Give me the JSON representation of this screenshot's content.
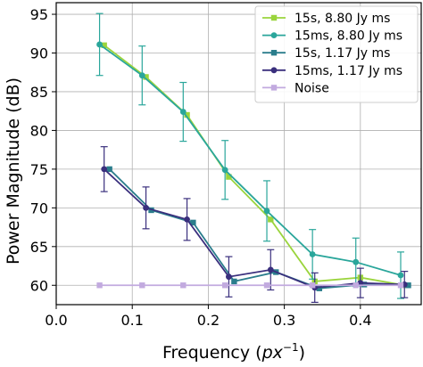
{
  "chart_data": {
    "type": "line",
    "xlabel": "Frequency",
    "xlabel_unit": "px",
    "xlabel_exponent": "−1",
    "ylabel": "Power Magnitude (dB)",
    "xlim": [
      0.0,
      0.48
    ],
    "ylim": [
      57.5,
      96.5
    ],
    "xticks": [
      0.0,
      0.1,
      0.2,
      0.3,
      0.4
    ],
    "xtick_labels": [
      "0.0",
      "0.1",
      "0.2",
      "0.3",
      "0.4"
    ],
    "yticks": [
      60,
      65,
      70,
      75,
      80,
      85,
      90,
      95
    ],
    "ytick_labels": [
      "60",
      "65",
      "70",
      "75",
      "80",
      "85",
      "90",
      "95"
    ],
    "grid": true,
    "legend_position": "top-right",
    "series": [
      {
        "name": "15s,  8.80 Jy ms",
        "color": "#9ad43c",
        "marker": "square",
        "x": [
          0.063,
          0.118,
          0.172,
          0.227,
          0.282,
          0.34,
          0.4,
          0.458
        ],
        "y": [
          91.0,
          86.9,
          82.0,
          74.0,
          68.5,
          60.5,
          61.0,
          60.0
        ],
        "yerr": []
      },
      {
        "name": "15ms, 8.80 Jy ms",
        "color": "#2aa69b",
        "marker": "circle",
        "x": [
          0.057,
          0.113,
          0.167,
          0.222,
          0.277,
          0.337,
          0.394,
          0.453
        ],
        "y": [
          91.1,
          87.1,
          82.4,
          74.9,
          69.6,
          64.0,
          63.0,
          61.3
        ],
        "yerr": [
          4.0,
          3.8,
          3.8,
          3.8,
          3.9,
          3.2,
          3.1,
          3.0
        ]
      },
      {
        "name": "15s,  1.17 Jy ms",
        "color": "#2a7d8c",
        "marker": "square",
        "x": [
          0.07,
          0.125,
          0.18,
          0.234,
          0.289,
          0.346,
          0.405,
          0.463
        ],
        "y": [
          75.0,
          69.7,
          68.1,
          60.5,
          61.7,
          59.6,
          60.1,
          60.0
        ],
        "yerr": []
      },
      {
        "name": "15ms, 1.17 Jy ms",
        "color": "#3a2f7d",
        "marker": "circle",
        "x": [
          0.063,
          0.118,
          0.172,
          0.227,
          0.282,
          0.34,
          0.4,
          0.458
        ],
        "y": [
          75.0,
          70.0,
          68.5,
          61.1,
          62.0,
          59.7,
          60.3,
          60.1
        ],
        "yerr": [
          2.9,
          2.7,
          2.7,
          2.6,
          2.6,
          1.9,
          1.9,
          1.7
        ]
      },
      {
        "name": "Noise",
        "color": "#c2aadf",
        "marker": "square",
        "x": [
          0.057,
          0.113,
          0.167,
          0.222,
          0.277,
          0.337,
          0.394,
          0.453
        ],
        "y": [
          60.0,
          60.0,
          60.0,
          60.0,
          60.0,
          60.0,
          60.0,
          60.0
        ],
        "yerr": []
      }
    ]
  }
}
